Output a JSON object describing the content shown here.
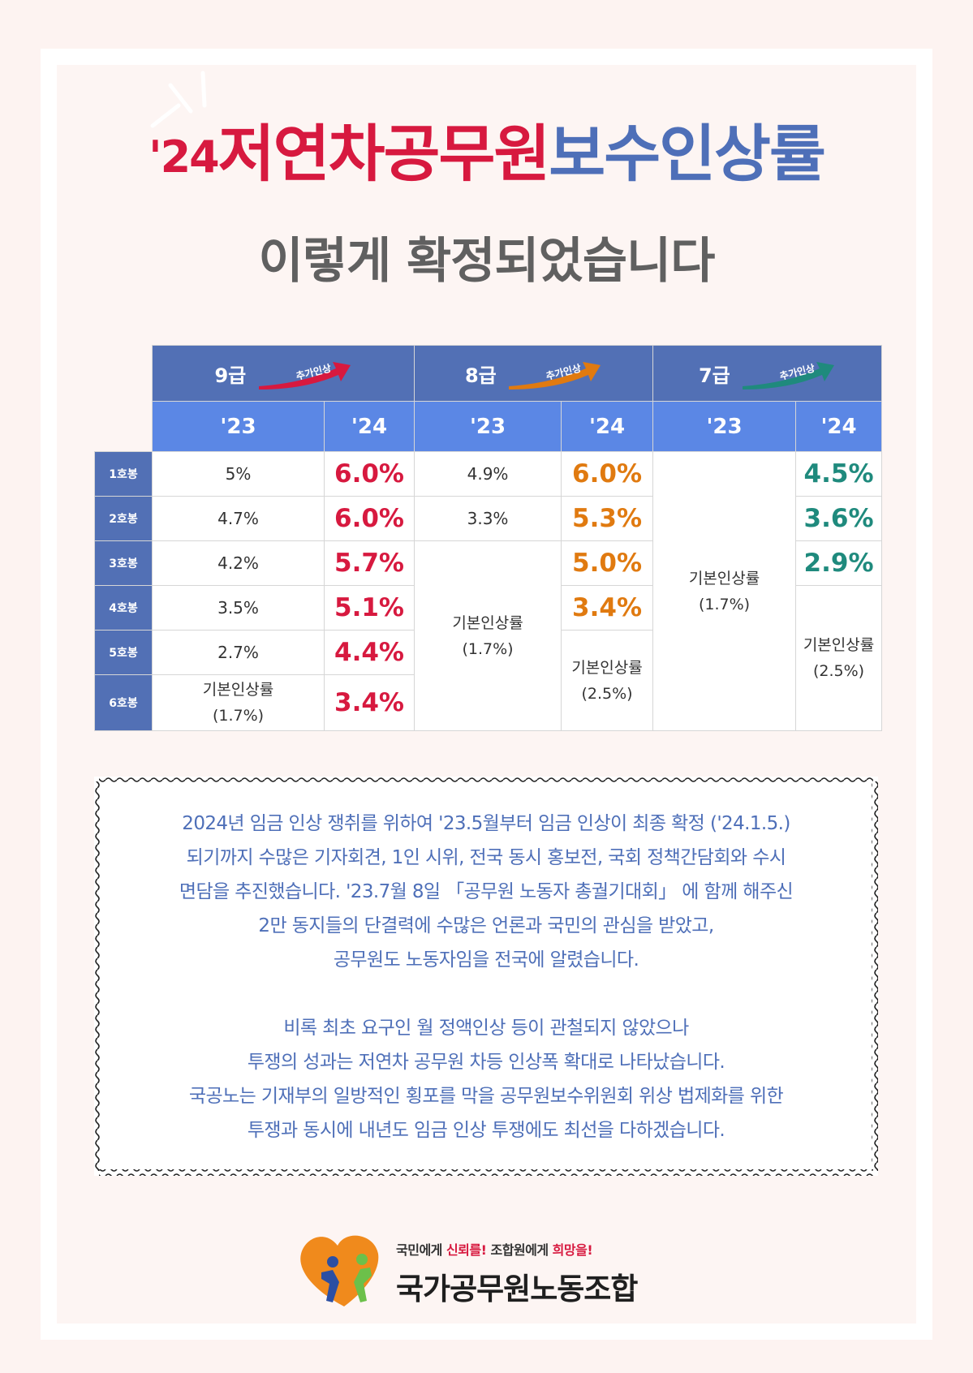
{
  "title": {
    "year": "'24",
    "red": "저연차공무원",
    "blue": "보수인상률"
  },
  "subtitle": "이렇게 확정되었습니다",
  "table": {
    "grades": [
      {
        "label": "9급",
        "tag": "추가인상",
        "color": "#d7193f"
      },
      {
        "label": "8급",
        "tag": "추가인상",
        "color": "#e07a10"
      },
      {
        "label": "7급",
        "tag": "추가인상",
        "color": "#1f8a7d"
      }
    ],
    "year_prev": "'23",
    "year_next": "'24",
    "steps": [
      "1호봉",
      "2호봉",
      "3호봉",
      "4호봉",
      "5호봉",
      "6호봉"
    ],
    "g9": {
      "prev": [
        "5%",
        "4.7%",
        "4.2%",
        "3.5%",
        "2.7%"
      ],
      "prev_base": "기본인상률",
      "prev_base_pct": "(1.7%)",
      "next": [
        "6.0%",
        "6.0%",
        "5.7%",
        "5.1%",
        "4.4%",
        "3.4%"
      ]
    },
    "g8": {
      "prev": [
        "4.9%",
        "3.3%"
      ],
      "prev_base": "기본인상률",
      "prev_base_pct": "(1.7%)",
      "next": [
        "6.0%",
        "5.3%",
        "5.0%",
        "3.4%"
      ],
      "next_base": "기본인상률",
      "next_base_pct": "(2.5%)"
    },
    "g7": {
      "prev_base": "기본인상률",
      "prev_base_pct": "(1.7%)",
      "next": [
        "4.5%",
        "3.6%",
        "2.9%"
      ],
      "next_base": "기본인상률",
      "next_base_pct": "(2.5%)"
    }
  },
  "notice": {
    "lines": [
      "2024년 임금 인상 쟁취를 위하여 '23.5월부터 임금 인상이 최종 확정 ('24.1.5.)",
      "되기까지 수많은 기자회견, 1인 시위, 전국 동시 홍보전, 국회 정책간담회와 수시",
      "면담을 추진했습니다. '23.7월 8일 「공무원 노동자 총궐기대회」 에 함께 해주신",
      "2만 동지들의 단결력에 수많은 언론과 국민의 관심을 받았고,",
      "공무원도 노동자임을 전국에 알렸습니다.",
      "",
      "비록 최초 요구인 월 정액인상 등이 관철되지 않았으나",
      "투쟁의 성과는 저연차 공무원 차등 인상폭 확대로 나타났습니다.",
      "국공노는 기재부의 일방적인 횡포를 막을 공무원보수위원회 위상 법제화를 위한",
      "투쟁과 동시에 내년도 임금 인상 투쟁에도 최선을 다하겠습니다."
    ]
  },
  "footer": {
    "slogan_a": "국민에게 ",
    "slogan_b": "신뢰를!",
    "slogan_c": " 조합원에게 ",
    "slogan_d": "희망을!",
    "org": "국가공무원노동조합"
  },
  "colors": {
    "red": "#d7193f",
    "blue": "#4e6fb8",
    "orange": "#e07a10",
    "teal": "#1f8a7d",
    "header": "#5270b5",
    "subheader": "#5b87e5"
  }
}
